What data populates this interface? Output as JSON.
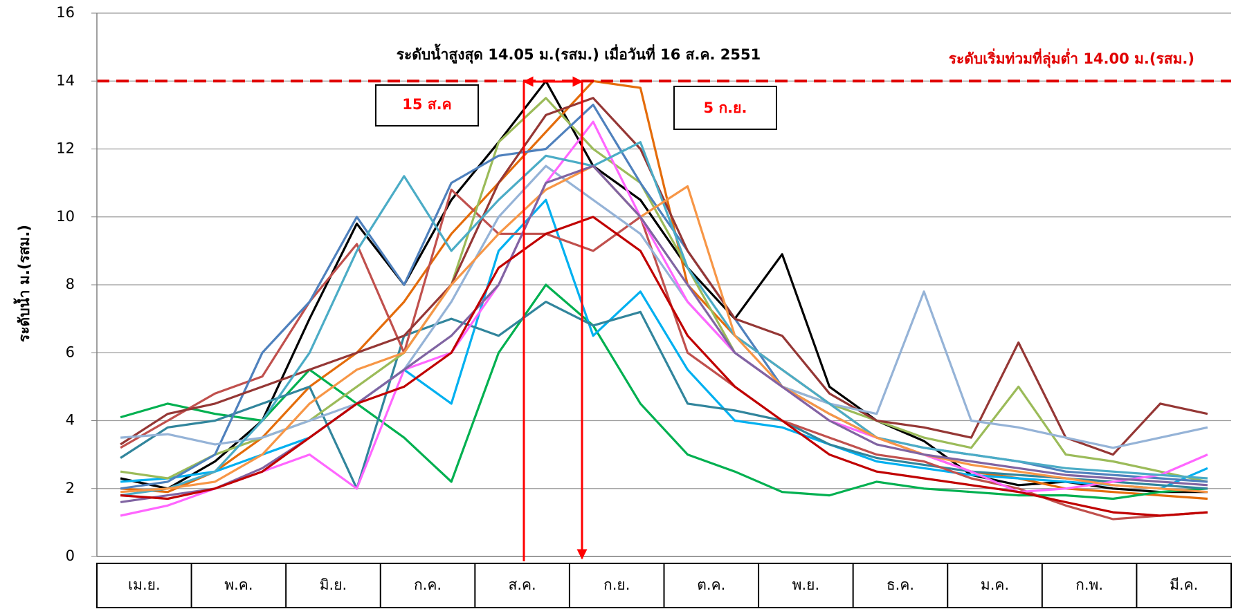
{
  "chart_data": {
    "type": "line",
    "y_label": "ระดับน้ำ ม.(รสม.)",
    "annotation_max": "ระดับน้ำสูงสุด 14.05 ม.(รสม.) เมื่อวันที่ 16 ส.ค. 2551",
    "annotation_threshold": "ระดับเริ่มท่วมที่ลุ่มต่ำ 14.00 ม.(รสม.)",
    "threshold": 14,
    "threshold_color": "#e00000",
    "marker_labels": [
      "15 ส.ค",
      "5 ก.ย."
    ],
    "categories": [
      "เม.ย.",
      null,
      "พ.ค.",
      null,
      "มิ.ย.",
      null,
      "ก.ค.",
      null,
      "ส.ค.",
      null,
      "ก.ย.",
      null,
      "ต.ค.",
      null,
      "พ.ย.",
      null,
      "ธ.ค.",
      null,
      "ม.ค.",
      null,
      "ก.พ.",
      null,
      "มี.ค.",
      null
    ],
    "ylim": [
      0,
      16
    ],
    "yticks": [
      0,
      2,
      4,
      6,
      8,
      10,
      12,
      14,
      16
    ],
    "grid": true,
    "series": [
      {
        "color": "#000000",
        "values": [
          2.3,
          2.0,
          2.8,
          4.0,
          7.0,
          9.8,
          8.0,
          10.5,
          12.2,
          14.0,
          11.5,
          10.5,
          8.5,
          7.0,
          8.9,
          5.0,
          4.0,
          3.4,
          2.4,
          2.1,
          2.2,
          2.0,
          1.9,
          1.9
        ]
      },
      {
        "color": "#e46c0a",
        "values": [
          2.0,
          1.9,
          2.5,
          3.5,
          5.0,
          6.0,
          7.5,
          9.5,
          11.0,
          12.5,
          14.0,
          13.8,
          8.0,
          6.5,
          5.5,
          4.5,
          3.5,
          3.0,
          2.5,
          2.3,
          2.0,
          1.9,
          1.8,
          1.7
        ]
      },
      {
        "color": "#00b050",
        "values": [
          4.1,
          4.5,
          4.2,
          4.0,
          5.5,
          4.5,
          3.5,
          2.2,
          6.0,
          8.0,
          6.8,
          4.5,
          3.0,
          2.5,
          1.9,
          1.8,
          2.2,
          2.0,
          1.9,
          1.8,
          1.8,
          1.7,
          1.9,
          2.0
        ]
      },
      {
        "color": "#00b0f0",
        "values": [
          2.2,
          2.3,
          2.5,
          3.0,
          3.5,
          4.5,
          5.5,
          4.5,
          9.0,
          10.5,
          6.5,
          7.8,
          5.5,
          4.0,
          3.8,
          3.3,
          2.8,
          2.6,
          2.4,
          2.3,
          2.2,
          2.1,
          2.0,
          2.6
        ]
      },
      {
        "color": "#31859c",
        "values": [
          2.9,
          3.8,
          4.0,
          4.5,
          5.0,
          2.0,
          6.5,
          7.0,
          6.5,
          7.5,
          6.8,
          7.2,
          4.5,
          4.3,
          4.0,
          3.3,
          2.9,
          2.7,
          2.5,
          2.4,
          2.3,
          2.2,
          2.1,
          2.0
        ]
      },
      {
        "color": "#c0504d",
        "values": [
          3.2,
          4.0,
          4.8,
          5.3,
          7.5,
          9.2,
          6.0,
          10.8,
          9.5,
          9.5,
          9.0,
          10.0,
          6.0,
          5.0,
          4.0,
          3.5,
          3.0,
          2.8,
          2.3,
          2.0,
          1.5,
          1.1,
          1.2,
          1.3
        ]
      },
      {
        "color": "#9bbb59",
        "values": [
          2.5,
          2.3,
          3.0,
          3.5,
          4.0,
          5.0,
          6.0,
          8.0,
          12.2,
          13.5,
          12.0,
          11.0,
          8.5,
          6.0,
          5.0,
          4.5,
          4.0,
          3.5,
          3.2,
          5.0,
          3.0,
          2.8,
          2.5,
          2.2
        ]
      },
      {
        "color": "#4f81bd",
        "values": [
          2.0,
          2.2,
          3.0,
          6.0,
          7.5,
          10.0,
          8.0,
          11.0,
          11.8,
          12.0,
          13.3,
          11.0,
          9.0,
          7.0,
          5.0,
          4.2,
          3.5,
          3.2,
          3.0,
          2.8,
          2.5,
          2.4,
          2.3,
          2.2
        ]
      },
      {
        "color": "#953735",
        "values": [
          3.3,
          4.2,
          4.5,
          5.0,
          5.5,
          6.0,
          6.5,
          8.0,
          11.0,
          13.0,
          13.5,
          12.0,
          9.0,
          7.0,
          6.5,
          4.8,
          4.0,
          3.8,
          3.5,
          6.3,
          3.5,
          3.0,
          4.5,
          4.2
        ]
      },
      {
        "color": "#95b3d7",
        "values": [
          3.5,
          3.6,
          3.3,
          3.5,
          4.0,
          4.5,
          5.5,
          7.5,
          10.0,
          11.5,
          10.5,
          9.5,
          7.5,
          6.0,
          5.0,
          4.5,
          4.2,
          7.8,
          4.0,
          3.8,
          3.5,
          3.2,
          3.5,
          3.8
        ]
      },
      {
        "color": "#ff66ff",
        "values": [
          1.2,
          1.5,
          2.0,
          2.5,
          3.0,
          2.0,
          5.5,
          6.0,
          8.0,
          11.0,
          12.8,
          10.0,
          7.5,
          6.0,
          5.0,
          4.0,
          3.5,
          3.0,
          2.5,
          1.9,
          2.0,
          2.2,
          2.4,
          3.0
        ]
      },
      {
        "color": "#4bacc6",
        "values": [
          1.8,
          2.0,
          2.5,
          4.0,
          6.0,
          9.0,
          11.2,
          9.0,
          10.5,
          11.8,
          11.5,
          12.2,
          8.5,
          6.5,
          5.5,
          4.5,
          3.5,
          3.2,
          3.0,
          2.8,
          2.6,
          2.5,
          2.4,
          2.3
        ]
      },
      {
        "color": "#f79646",
        "values": [
          1.9,
          2.0,
          2.2,
          3.0,
          4.5,
          5.5,
          6.0,
          8.0,
          9.5,
          10.8,
          11.5,
          10.0,
          10.9,
          6.5,
          5.0,
          4.2,
          3.5,
          3.0,
          2.7,
          2.5,
          2.3,
          2.1,
          2.0,
          1.9
        ]
      },
      {
        "color": "#8064a2",
        "values": [
          1.6,
          1.8,
          2.0,
          2.6,
          3.5,
          4.5,
          5.5,
          6.5,
          8.0,
          11.0,
          11.5,
          10.0,
          8.0,
          6.0,
          5.0,
          4.0,
          3.3,
          3.0,
          2.8,
          2.6,
          2.4,
          2.3,
          2.2,
          2.1
        ]
      },
      {
        "color": "#c00000",
        "values": [
          1.8,
          1.7,
          2.0,
          2.5,
          3.5,
          4.5,
          5.0,
          6.0,
          8.5,
          9.5,
          10.0,
          9.0,
          6.5,
          5.0,
          4.0,
          3.0,
          2.5,
          2.3,
          2.1,
          1.9,
          1.6,
          1.3,
          1.2,
          1.3
        ]
      }
    ]
  }
}
